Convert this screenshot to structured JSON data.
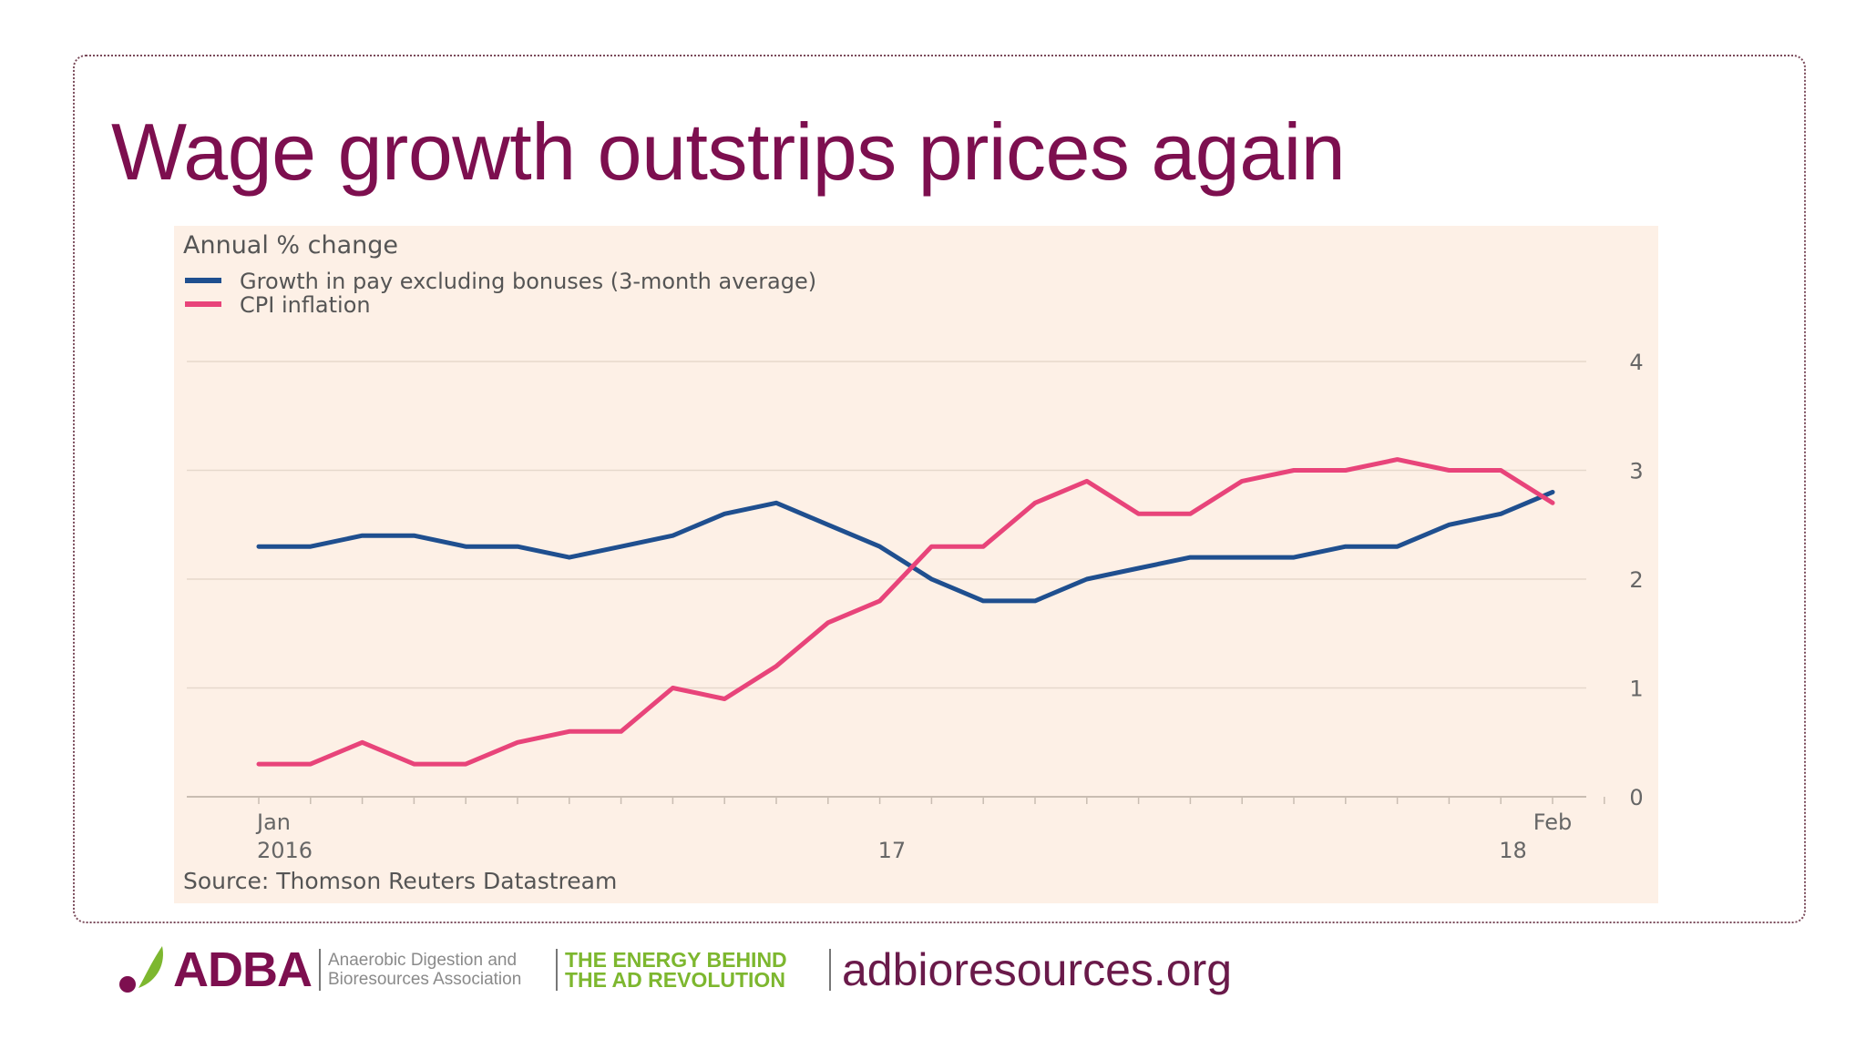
{
  "slide": {
    "title": "Wage growth outstrips prices again"
  },
  "footer": {
    "logo_text": "ADBA",
    "org_line1": "Anaerobic Digestion and",
    "org_line2": "Bioresources Association",
    "tagline_line1": "THE ENERGY BEHIND",
    "tagline_line2": "THE AD REVOLUTION",
    "website": "adbioresources.org",
    "colors": {
      "brand": "#7d0f4f",
      "accent": "#7db72f"
    }
  },
  "chart_data": {
    "type": "line",
    "title": "",
    "ylabel": "Annual % change",
    "source": "Source: Thomson Reuters Datastream",
    "ylim": [
      0,
      4
    ],
    "yticks": [
      "0",
      "1",
      "2",
      "3",
      "4"
    ],
    "y_axis_side": "right",
    "grid": true,
    "legend_position": "top-left",
    "x_labels": [
      {
        "month_index": 0,
        "line1": "Jan",
        "line2": "2016"
      },
      {
        "month_index": 12,
        "line1": "",
        "line2": "17"
      },
      {
        "month_index": 24,
        "line1": "",
        "line2": "18"
      },
      {
        "month_index": 25,
        "line1": "Feb",
        "line2": ""
      }
    ],
    "months": [
      "2016-01",
      "2016-02",
      "2016-03",
      "2016-04",
      "2016-05",
      "2016-06",
      "2016-07",
      "2016-08",
      "2016-09",
      "2016-10",
      "2016-11",
      "2016-12",
      "2017-01",
      "2017-02",
      "2017-03",
      "2017-04",
      "2017-05",
      "2017-06",
      "2017-07",
      "2017-08",
      "2017-09",
      "2017-10",
      "2017-11",
      "2017-12",
      "2018-01",
      "2018-02",
      "2018-03"
    ],
    "series": [
      {
        "name": "Growth in pay excluding bonuses (3-month average)",
        "color": "#1f4f8f",
        "values": [
          2.3,
          2.3,
          2.4,
          2.4,
          2.3,
          2.3,
          2.2,
          2.3,
          2.4,
          2.6,
          2.7,
          2.5,
          2.3,
          2.0,
          1.8,
          1.8,
          2.0,
          2.1,
          2.2,
          2.2,
          2.2,
          2.3,
          2.3,
          2.5,
          2.6,
          2.8,
          null
        ]
      },
      {
        "name": "CPI inflation",
        "color": "#e8447a",
        "values": [
          0.3,
          0.3,
          0.5,
          0.3,
          0.3,
          0.5,
          0.6,
          0.6,
          1.0,
          0.9,
          1.2,
          1.6,
          1.8,
          2.3,
          2.3,
          2.7,
          2.9,
          2.6,
          2.6,
          2.9,
          3.0,
          3.0,
          3.1,
          3.0,
          3.0,
          2.7,
          null
        ]
      }
    ]
  }
}
